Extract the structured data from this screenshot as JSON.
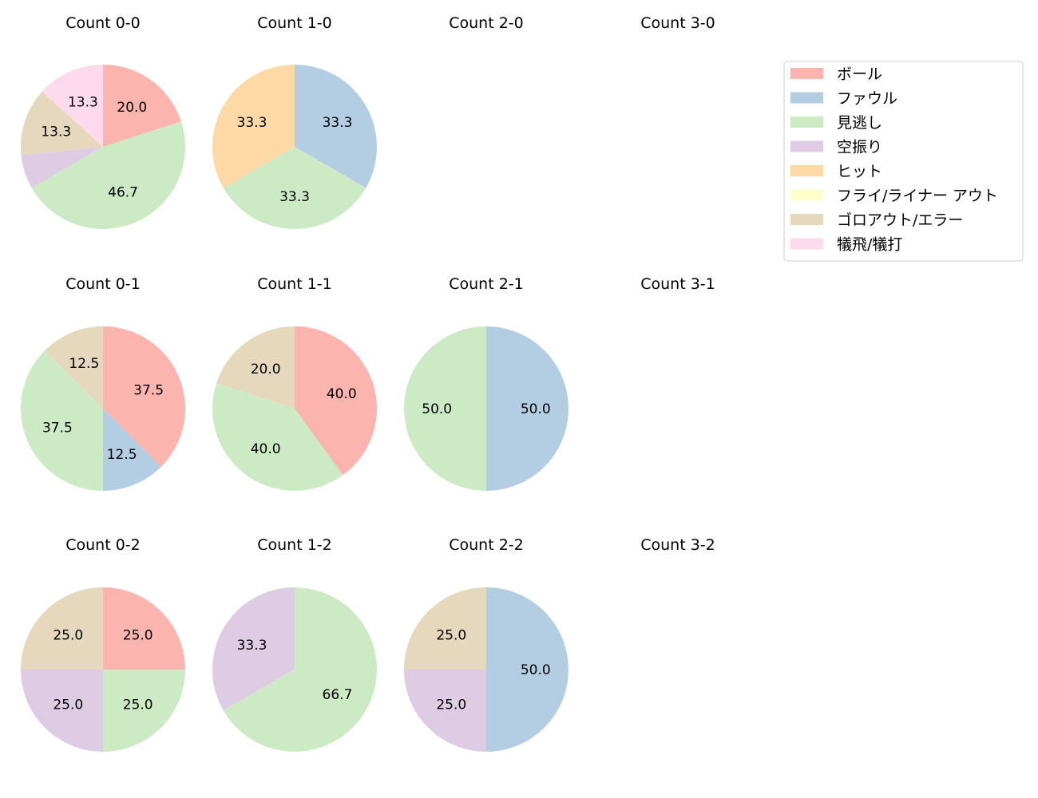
{
  "chart_data": {
    "type": "pie",
    "categories": [
      "ボール",
      "ファウル",
      "見逃し",
      "空振り",
      "ヒット",
      "フライ/ライナー アウト",
      "ゴロアウト/エラー",
      "犠飛/犠打"
    ],
    "colors": [
      "#fbb4ae",
      "#b3cde3",
      "#ccebc5",
      "#decbe4",
      "#fed9a6",
      "#ffffcc",
      "#e5d8bd",
      "#fddaec"
    ],
    "legend_position": "top-right",
    "start_angle": "top, clockwise",
    "pies": [
      {
        "title": "Count 0-0",
        "values": [
          20.0,
          0,
          46.7,
          6.7,
          0,
          0,
          13.3,
          13.3
        ]
      },
      {
        "title": "Count 1-0",
        "values": [
          0,
          33.3,
          33.3,
          0,
          33.3,
          0,
          0,
          0
        ]
      },
      {
        "title": "Count 2-0",
        "values": []
      },
      {
        "title": "Count 3-0",
        "values": []
      },
      {
        "title": "Count 0-1",
        "values": [
          37.5,
          12.5,
          37.5,
          0,
          0,
          0,
          12.5,
          0
        ]
      },
      {
        "title": "Count 1-1",
        "values": [
          40.0,
          0,
          40.0,
          0,
          0,
          0,
          20.0,
          0
        ]
      },
      {
        "title": "Count 2-1",
        "values": [
          0,
          50.0,
          50.0,
          0,
          0,
          0,
          0,
          0
        ]
      },
      {
        "title": "Count 3-1",
        "values": []
      },
      {
        "title": "Count 0-2",
        "values": [
          25.0,
          0,
          25.0,
          25.0,
          0,
          0,
          25.0,
          0
        ]
      },
      {
        "title": "Count 1-2",
        "values": [
          0,
          0,
          66.7,
          33.3,
          0,
          0,
          0,
          0
        ]
      },
      {
        "title": "Count 2-2",
        "values": [
          0,
          50.0,
          0,
          25.0,
          0,
          0,
          25.0,
          0
        ]
      },
      {
        "title": "Count 3-2",
        "values": []
      }
    ]
  }
}
